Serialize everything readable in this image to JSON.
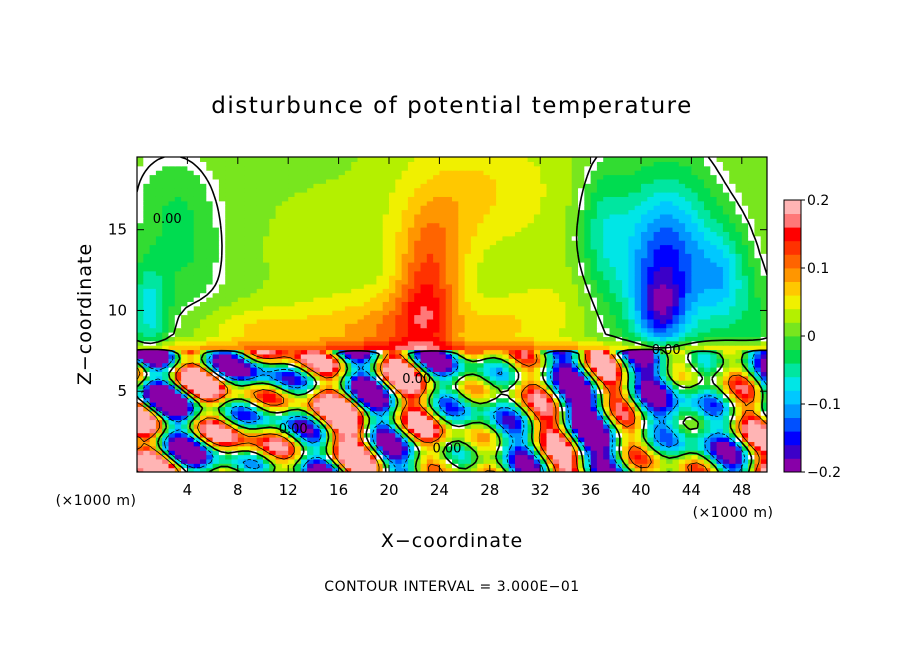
{
  "chart_data": {
    "type": "heatmap",
    "title": "disturbunce of potential temperature",
    "xlabel": "X−coordinate",
    "ylabel": "Z−coordinate",
    "x_unit_left": "(×1000 m)",
    "x_unit_right": "(×1000 m)",
    "footer": "CONTOUR INTERVAL = 3.000E−01",
    "xlim": [
      0,
      50
    ],
    "ylim": [
      0,
      19.5
    ],
    "x_ticks": [
      4,
      8,
      12,
      16,
      20,
      24,
      28,
      32,
      36,
      40,
      44,
      48
    ],
    "x_tick_labels": [
      "4",
      "8",
      "12",
      "16",
      "20",
      "24",
      "28",
      "32",
      "36",
      "40",
      "44",
      "48"
    ],
    "y_ticks": [
      5,
      10,
      15
    ],
    "y_tick_labels": [
      "5",
      "10",
      "15"
    ],
    "colorbar": {
      "range": [
        -0.2,
        0.2
      ],
      "tick_values": [
        0.2,
        0.1,
        0,
        -0.1,
        -0.2
      ],
      "tick_labels": [
        "0.2",
        "0.1",
        "0",
        "−0.1",
        "−0.2"
      ],
      "colors": [
        "#8800a8",
        "#3c00c8",
        "#0000ff",
        "#0050ff",
        "#0096ff",
        "#00c8ff",
        "#00e6e6",
        "#00e6a0",
        "#00dc50",
        "#32dc32",
        "#78e61e",
        "#b4f000",
        "#f0f000",
        "#ffc800",
        "#ff9600",
        "#ff6400",
        "#ff3200",
        "#ff0000",
        "#ff7878",
        "#ffb4b4"
      ]
    },
    "contour_labels": [
      {
        "text": "0.00",
        "x": 2.4,
        "y": 15.4
      },
      {
        "text": "0.00",
        "x": 22.2,
        "y": 5.5
      },
      {
        "text": "0.00",
        "x": 12.4,
        "y": 2.4
      },
      {
        "text": "0.00",
        "x": 24.6,
        "y": 1.2
      },
      {
        "text": "0.00",
        "x": 42.0,
        "y": 7.3
      }
    ],
    "upper_blobs": [
      {
        "x": 20,
        "y": 8.6,
        "sx": 6,
        "sy": 2.5,
        "v": 0.08
      },
      {
        "x": 23,
        "y": 10.5,
        "sx": 2.5,
        "sy": 3.5,
        "v": 0.1
      },
      {
        "x": 23.5,
        "y": 14.5,
        "sx": 3,
        "sy": 3,
        "v": 0.05
      },
      {
        "x": 27,
        "y": 17.5,
        "sx": 7,
        "sy": 4,
        "v": 0.05
      },
      {
        "x": 29,
        "y": 9,
        "sx": 3,
        "sy": 2,
        "v": 0.04
      },
      {
        "x": 33,
        "y": 10,
        "sx": 3,
        "sy": 3,
        "v": 0.03
      },
      {
        "x": 10,
        "y": 8.8,
        "sx": 5,
        "sy": 1.5,
        "v": 0.05
      },
      {
        "x": 4,
        "y": 13.5,
        "sx": 3,
        "sy": 4,
        "v": -0.03
      },
      {
        "x": 1,
        "y": 10,
        "sx": 1.5,
        "sy": 3,
        "v": -0.08
      },
      {
        "x": 2.5,
        "y": 17,
        "sx": 3,
        "sy": 3,
        "v": -0.02
      },
      {
        "x": 14,
        "y": 14,
        "sx": 5,
        "sy": 4,
        "v": 0.015
      },
      {
        "x": 42,
        "y": 13,
        "sx": 3.5,
        "sy": 5,
        "v": -0.16
      },
      {
        "x": 41.5,
        "y": 10,
        "sx": 1.8,
        "sy": 2,
        "v": -0.09
      },
      {
        "x": 46.5,
        "y": 12,
        "sx": 2,
        "sy": 3,
        "v": -0.08
      },
      {
        "x": 37,
        "y": 15,
        "sx": 2,
        "sy": 4,
        "v": -0.06
      },
      {
        "x": 49,
        "y": 9,
        "sx": 2,
        "sy": 3,
        "v": -0.03
      }
    ]
  }
}
